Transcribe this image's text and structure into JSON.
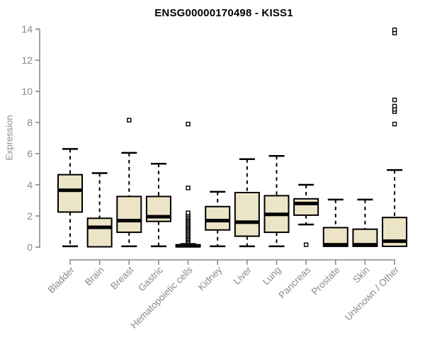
{
  "title": "ENSG00000170498 - KISS1",
  "chart_data": {
    "type": "boxplot",
    "title": "ENSG00000170498 - KISS1",
    "ylabel": "Expression",
    "xlabel": "",
    "ylim": [
      0,
      14
    ],
    "yticks": [
      0,
      2,
      4,
      6,
      8,
      10,
      12,
      14
    ],
    "grid": "off",
    "legend": "none",
    "categories": [
      "Bladder",
      "Brain",
      "Breast",
      "Gastric",
      "Hematopoietic cells",
      "Kidney",
      "Liver",
      "Lung",
      "Pancreas",
      "Prostate",
      "Skin",
      "Unknown / Other"
    ],
    "series": [
      {
        "label": "Bladder",
        "low": 0.05,
        "q1": 2.25,
        "median": 3.65,
        "q3": 4.65,
        "high": 6.3,
        "outliers": []
      },
      {
        "label": "Brain",
        "low": 0.02,
        "q1": 0.02,
        "median": 1.27,
        "q3": 1.85,
        "high": 4.75,
        "outliers": []
      },
      {
        "label": "Breast",
        "low": 0.05,
        "q1": 0.95,
        "median": 1.7,
        "q3": 3.25,
        "high": 6.05,
        "outliers": [
          8.15
        ]
      },
      {
        "label": "Gastric",
        "low": 0.05,
        "q1": 1.65,
        "median": 1.95,
        "q3": 3.25,
        "high": 5.35,
        "outliers": []
      },
      {
        "label": "Hematopoietic cells",
        "low": 0.02,
        "q1": 0.02,
        "median": 0.08,
        "q3": 0.15,
        "high": 0.2,
        "outliers": [
          0.3,
          0.38,
          0.47,
          0.55,
          0.64,
          0.72,
          0.81,
          0.89,
          0.98,
          1.06,
          1.15,
          1.23,
          1.32,
          1.4,
          1.49,
          1.57,
          1.66,
          1.74,
          1.83,
          1.91,
          2.0,
          2.1,
          2.2,
          3.8,
          7.9
        ]
      },
      {
        "label": "Kidney",
        "low": 0.05,
        "q1": 1.1,
        "median": 1.7,
        "q3": 2.6,
        "high": 3.55,
        "outliers": []
      },
      {
        "label": "Liver",
        "low": 0.05,
        "q1": 0.7,
        "median": 1.6,
        "q3": 3.5,
        "high": 5.65,
        "outliers": []
      },
      {
        "label": "Lung",
        "low": 0.05,
        "q1": 0.95,
        "median": 2.1,
        "q3": 3.3,
        "high": 5.85,
        "outliers": []
      },
      {
        "label": "Pancreas",
        "low": 1.45,
        "q1": 2.05,
        "median": 2.8,
        "q3": 3.1,
        "high": 4.0,
        "outliers": [
          0.15
        ]
      },
      {
        "label": "Prostate",
        "low": 0.02,
        "q1": 0.05,
        "median": 0.15,
        "q3": 1.25,
        "high": 3.05,
        "outliers": []
      },
      {
        "label": "Skin",
        "low": 0.02,
        "q1": 0.05,
        "median": 0.15,
        "q3": 1.15,
        "high": 3.05,
        "outliers": []
      },
      {
        "label": "Unknown / Other",
        "low": 0.02,
        "q1": 0.05,
        "median": 0.38,
        "q3": 1.9,
        "high": 4.95,
        "outliers": [
          7.9,
          8.7,
          8.85,
          9.05,
          9.45,
          13.75,
          13.95
        ]
      }
    ],
    "colors": {
      "box_fill": "#ECE4C6",
      "box_border": "#000000",
      "median": "#000000",
      "whisker": "#000000",
      "outlier_fill": "#FFFFFF",
      "outlier_border": "#000000",
      "axis": "#8A8A8A",
      "axis_label": "#8A8A8A",
      "title": "#000000",
      "background": "#FFFFFF"
    }
  }
}
